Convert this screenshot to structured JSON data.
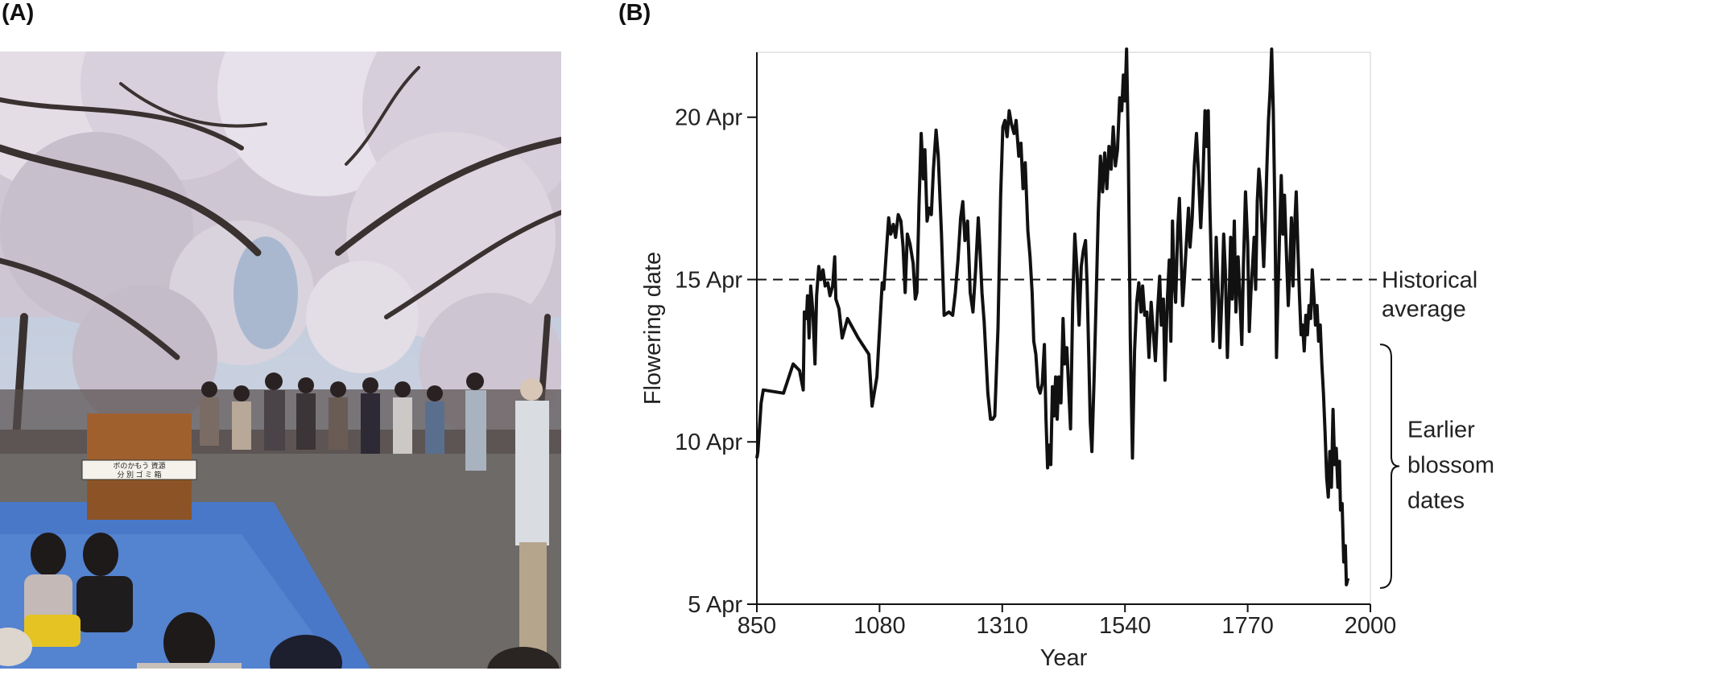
{
  "panel_a_label": "(A)",
  "panel_b_label": "(B)",
  "photo": {
    "banner_text_1": "ボのかもう 資源",
    "banner_text_2": "分 別 ゴ ミ 箱"
  },
  "chart_data": {
    "type": "line",
    "xlabel": "Year",
    "ylabel": "Flowering date",
    "xlim": [
      850,
      2000
    ],
    "ylim_days_after_5_apr": [
      0,
      17
    ],
    "x_ticks": [
      850,
      1080,
      1310,
      1540,
      1770,
      2000
    ],
    "x_tick_labels": [
      "850",
      "1080",
      "1310",
      "1540",
      "1770",
      "2000"
    ],
    "y_ticks": [
      0,
      5,
      10,
      15
    ],
    "y_tick_labels": [
      "5 Apr",
      "10 Apr",
      "15 Apr",
      "20 Apr"
    ],
    "reference_line": {
      "value": 10,
      "style": "dashed",
      "label_line1": "Historical",
      "label_line2": "average"
    },
    "bracket": {
      "from": 0.5,
      "to": 8,
      "label_lines": [
        "Earlier",
        "blossom",
        "dates"
      ]
    },
    "series": [
      {
        "values_unit": "days after 5 Apr",
        "points": [
          [
            850,
            4.5
          ],
          [
            852,
            4.7
          ],
          [
            858,
            6.2
          ],
          [
            862,
            6.6
          ],
          [
            900,
            6.5
          ],
          [
            918,
            7.4
          ],
          [
            930,
            7.2
          ],
          [
            937,
            6.6
          ],
          [
            939,
            9.0
          ],
          [
            943,
            8.8
          ],
          [
            945,
            9.5
          ],
          [
            948,
            8.2
          ],
          [
            951,
            9.8
          ],
          [
            955,
            9.0
          ],
          [
            959,
            7.4
          ],
          [
            962,
            9.5
          ],
          [
            966,
            10.4
          ],
          [
            970,
            10.0
          ],
          [
            974,
            10.3
          ],
          [
            978,
            9.8
          ],
          [
            983,
            9.9
          ],
          [
            987,
            9.5
          ],
          [
            992,
            9.8
          ],
          [
            996,
            10.7
          ],
          [
            998,
            9.4
          ],
          [
            1004,
            9.1
          ],
          [
            1010,
            8.2
          ],
          [
            1020,
            8.8
          ],
          [
            1040,
            8.2
          ],
          [
            1060,
            7.7
          ],
          [
            1066,
            6.1
          ],
          [
            1075,
            7.0
          ],
          [
            1085,
            9.9
          ],
          [
            1088,
            9.7
          ],
          [
            1092,
            10.7
          ],
          [
            1097,
            11.9
          ],
          [
            1101,
            11.4
          ],
          [
            1106,
            11.7
          ],
          [
            1110,
            11.3
          ],
          [
            1115,
            12.0
          ],
          [
            1120,
            11.8
          ],
          [
            1124,
            11.0
          ],
          [
            1128,
            9.6
          ],
          [
            1132,
            11.4
          ],
          [
            1137,
            11.1
          ],
          [
            1143,
            10.5
          ],
          [
            1147,
            9.4
          ],
          [
            1150,
            9.6
          ],
          [
            1154,
            12.3
          ],
          [
            1158,
            14.5
          ],
          [
            1162,
            13.1
          ],
          [
            1165,
            14.0
          ],
          [
            1169,
            11.8
          ],
          [
            1173,
            12.2
          ],
          [
            1177,
            12.0
          ],
          [
            1181,
            13.4
          ],
          [
            1186,
            14.6
          ],
          [
            1190,
            13.8
          ],
          [
            1196,
            11.4
          ],
          [
            1201,
            8.9
          ],
          [
            1210,
            9.0
          ],
          [
            1217,
            8.9
          ],
          [
            1222,
            9.6
          ],
          [
            1227,
            10.6
          ],
          [
            1232,
            11.9
          ],
          [
            1236,
            12.4
          ],
          [
            1240,
            11.2
          ],
          [
            1245,
            11.8
          ],
          [
            1250,
            9.6
          ],
          [
            1255,
            9.0
          ],
          [
            1260,
            10.3
          ],
          [
            1265,
            11.9
          ],
          [
            1268,
            11.0
          ],
          [
            1272,
            9.6
          ],
          [
            1276,
            8.7
          ],
          [
            1283,
            6.5
          ],
          [
            1288,
            5.7
          ],
          [
            1292,
            5.7
          ],
          [
            1296,
            5.8
          ],
          [
            1302,
            8.5
          ],
          [
            1307,
            12.6
          ],
          [
            1311,
            14.7
          ],
          [
            1315,
            14.9
          ],
          [
            1319,
            14.4
          ],
          [
            1323,
            15.2
          ],
          [
            1327,
            14.8
          ],
          [
            1332,
            14.5
          ],
          [
            1336,
            14.9
          ],
          [
            1341,
            13.8
          ],
          [
            1345,
            14.2
          ],
          [
            1349,
            12.8
          ],
          [
            1353,
            13.6
          ],
          [
            1358,
            11.5
          ],
          [
            1362,
            10.7
          ],
          [
            1366,
            9.6
          ],
          [
            1369,
            8.1
          ],
          [
            1373,
            7.7
          ],
          [
            1377,
            6.7
          ],
          [
            1381,
            6.5
          ],
          [
            1385,
            6.8
          ],
          [
            1389,
            8.0
          ],
          [
            1392,
            5.7
          ],
          [
            1395,
            4.2
          ],
          [
            1398,
            4.9
          ],
          [
            1401,
            4.3
          ],
          [
            1404,
            6.7
          ],
          [
            1407,
            5.8
          ],
          [
            1410,
            7.0
          ],
          [
            1413,
            5.7
          ],
          [
            1416,
            7.0
          ],
          [
            1420,
            6.2
          ],
          [
            1424,
            8.8
          ],
          [
            1427,
            7.4
          ],
          [
            1431,
            7.9
          ],
          [
            1434,
            6.8
          ],
          [
            1438,
            5.4
          ],
          [
            1442,
            9.3
          ],
          [
            1446,
            11.4
          ],
          [
            1450,
            10.3
          ],
          [
            1454,
            8.6
          ],
          [
            1458,
            10.4
          ],
          [
            1462,
            10.9
          ],
          [
            1466,
            11.2
          ],
          [
            1469,
            9.8
          ],
          [
            1472,
            7.8
          ],
          [
            1475,
            5.6
          ],
          [
            1478,
            4.7
          ],
          [
            1482,
            6.9
          ],
          [
            1486,
            9.4
          ],
          [
            1490,
            12.1
          ],
          [
            1494,
            13.8
          ],
          [
            1498,
            12.7
          ],
          [
            1502,
            13.9
          ],
          [
            1506,
            12.8
          ],
          [
            1510,
            14.1
          ],
          [
            1514,
            13.4
          ],
          [
            1518,
            14.7
          ],
          [
            1522,
            13.5
          ],
          [
            1526,
            14.0
          ],
          [
            1530,
            15.6
          ],
          [
            1534,
            15.2
          ],
          [
            1537,
            16.3
          ],
          [
            1540,
            15.5
          ],
          [
            1543,
            17.1
          ],
          [
            1546,
            14.3
          ],
          [
            1550,
            8.2
          ],
          [
            1554,
            4.5
          ],
          [
            1558,
            7.8
          ],
          [
            1562,
            9.3
          ],
          [
            1566,
            9.9
          ],
          [
            1570,
            9.0
          ],
          [
            1573,
            9.8
          ],
          [
            1577,
            8.9
          ],
          [
            1581,
            9.0
          ],
          [
            1585,
            7.6
          ],
          [
            1589,
            9.3
          ],
          [
            1593,
            8.4
          ],
          [
            1597,
            7.5
          ],
          [
            1601,
            9.0
          ],
          [
            1605,
            10.1
          ],
          [
            1608,
            8.6
          ],
          [
            1612,
            9.4
          ],
          [
            1615,
            6.9
          ],
          [
            1619,
            9.2
          ],
          [
            1623,
            10.6
          ],
          [
            1626,
            8.1
          ],
          [
            1629,
            11.8
          ],
          [
            1632,
            10.0
          ],
          [
            1635,
            9.3
          ],
          [
            1639,
            11.6
          ],
          [
            1642,
            12.5
          ],
          [
            1645,
            10.9
          ],
          [
            1648,
            9.2
          ],
          [
            1651,
            9.9
          ],
          [
            1655,
            11.1
          ],
          [
            1659,
            12.2
          ],
          [
            1662,
            11.0
          ],
          [
            1666,
            11.9
          ],
          [
            1670,
            13.5
          ],
          [
            1674,
            14.5
          ],
          [
            1678,
            13.2
          ],
          [
            1682,
            11.6
          ],
          [
            1686,
            13.0
          ],
          [
            1690,
            15.2
          ],
          [
            1693,
            14.1
          ],
          [
            1696,
            15.2
          ],
          [
            1699,
            12.3
          ],
          [
            1702,
            10.4
          ],
          [
            1705,
            8.1
          ],
          [
            1708,
            9.3
          ],
          [
            1711,
            11.3
          ],
          [
            1715,
            9.5
          ],
          [
            1718,
            7.9
          ],
          [
            1722,
            9.6
          ],
          [
            1725,
            11.4
          ],
          [
            1728,
            10.3
          ],
          [
            1732,
            7.6
          ],
          [
            1735,
            9.2
          ],
          [
            1738,
            11.3
          ],
          [
            1741,
            9.4
          ],
          [
            1745,
            11.8
          ],
          [
            1748,
            9.0
          ],
          [
            1752,
            10.7
          ],
          [
            1755,
            9.6
          ],
          [
            1759,
            8.0
          ],
          [
            1762,
            10.4
          ],
          [
            1766,
            12.7
          ],
          [
            1770,
            11.1
          ],
          [
            1773,
            8.4
          ],
          [
            1776,
            9.6
          ],
          [
            1779,
            10.4
          ],
          [
            1782,
            11.3
          ],
          [
            1785,
            9.7
          ],
          [
            1788,
            12.4
          ],
          [
            1791,
            13.4
          ],
          [
            1794,
            12.8
          ],
          [
            1797,
            11.6
          ],
          [
            1800,
            10.4
          ],
          [
            1803,
            11.8
          ],
          [
            1806,
            13.5
          ],
          [
            1809,
            14.9
          ],
          [
            1812,
            15.8
          ],
          [
            1815,
            17.1
          ],
          [
            1818,
            15.2
          ],
          [
            1821,
            12.1
          ],
          [
            1824,
            7.6
          ],
          [
            1827,
            9.7
          ],
          [
            1830,
            11.6
          ],
          [
            1833,
            13.2
          ],
          [
            1836,
            11.4
          ],
          [
            1839,
            12.6
          ],
          [
            1843,
            10.6
          ],
          [
            1846,
            9.2
          ],
          [
            1849,
            10.3
          ],
          [
            1852,
            11.9
          ],
          [
            1855,
            9.8
          ],
          [
            1858,
            11.6
          ],
          [
            1861,
            12.7
          ],
          [
            1864,
            11.0
          ],
          [
            1867,
            9.5
          ],
          [
            1870,
            8.3
          ],
          [
            1873,
            8.6
          ],
          [
            1876,
            7.8
          ],
          [
            1879,
            8.9
          ],
          [
            1882,
            8.3
          ],
          [
            1885,
            9.2
          ],
          [
            1888,
            8.8
          ],
          [
            1891,
            10.3
          ],
          [
            1894,
            9.5
          ],
          [
            1897,
            8.6
          ],
          [
            1900,
            9.2
          ],
          [
            1903,
            8.1
          ],
          [
            1906,
            8.6
          ],
          [
            1909,
            7.4
          ],
          [
            1912,
            6.5
          ],
          [
            1915,
            5.3
          ],
          [
            1918,
            3.9
          ],
          [
            1921,
            3.3
          ],
          [
            1924,
            4.7
          ],
          [
            1927,
            3.6
          ],
          [
            1930,
            6.0
          ],
          [
            1933,
            4.3
          ],
          [
            1936,
            4.8
          ],
          [
            1939,
            3.6
          ],
          [
            1942,
            4.4
          ],
          [
            1944,
            2.9
          ],
          [
            1947,
            3.1
          ],
          [
            1950,
            1.3
          ],
          [
            1953,
            1.8
          ],
          [
            1955,
            0.6
          ],
          [
            1958,
            0.8
          ]
        ]
      }
    ]
  }
}
